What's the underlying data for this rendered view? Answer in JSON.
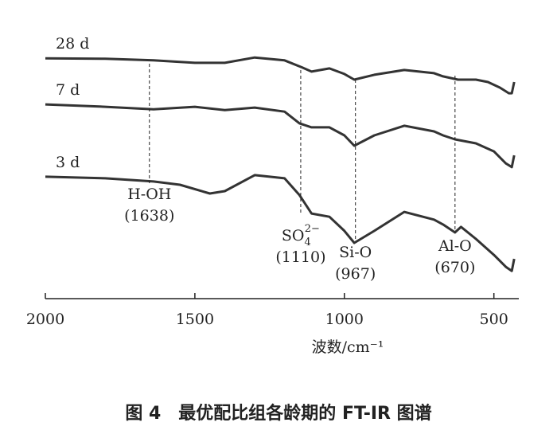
{
  "chart_data": {
    "type": "line",
    "x_label": "波数/cm⁻¹",
    "caption": "图 4　最优配比组各龄期的 FT-IR 图谱",
    "xlim": [
      2000,
      430
    ],
    "xticks": [
      2000,
      1500,
      1000,
      500
    ],
    "ylim": [
      0,
      100
    ],
    "series": [
      {
        "name": "28 d",
        "color": "#333333",
        "x": [
          2000,
          1800,
          1638,
          1500,
          1400,
          1300,
          1200,
          1140,
          1110,
          1050,
          1000,
          967,
          900,
          800,
          700,
          670,
          620,
          560,
          520,
          480,
          450,
          440,
          432
        ],
        "values": [
          90.1,
          89.9,
          89.3,
          88.4,
          88.4,
          90.4,
          89.3,
          86.6,
          85.1,
          86.3,
          84.2,
          82.1,
          83.9,
          85.7,
          84.5,
          83.3,
          82.1,
          82.1,
          81.2,
          79.1,
          77.0,
          77.0,
          81.2
        ]
      },
      {
        "name": "7 d",
        "color": "#333333",
        "x": [
          2000,
          1800,
          1638,
          1500,
          1400,
          1300,
          1200,
          1150,
          1110,
          1050,
          1000,
          967,
          900,
          800,
          700,
          670,
          630,
          560,
          500,
          460,
          440,
          432
        ],
        "values": [
          72.8,
          71.9,
          71.0,
          71.9,
          70.7,
          71.6,
          70.1,
          65.7,
          64.2,
          64.2,
          61.2,
          57.3,
          61.2,
          64.8,
          62.7,
          61.2,
          59.7,
          58.2,
          55.2,
          50.7,
          49.3,
          53.7
        ]
      },
      {
        "name": "3 d",
        "color": "#333333",
        "x": [
          2000,
          1800,
          1638,
          1550,
          1450,
          1400,
          1300,
          1200,
          1150,
          1110,
          1050,
          1000,
          967,
          900,
          800,
          700,
          670,
          630,
          610,
          560,
          500,
          460,
          440,
          432
        ],
        "values": [
          45.7,
          45.1,
          43.9,
          42.7,
          39.4,
          40.3,
          46.3,
          45.1,
          38.8,
          31.9,
          30.7,
          25.4,
          20.9,
          25.4,
          32.5,
          29.6,
          27.8,
          24.8,
          26.9,
          22.4,
          16.4,
          11.9,
          10.4,
          14.9
        ]
      }
    ],
    "annotations": [
      {
        "x": 1652,
        "text": "H-OH",
        "label": "(1638)"
      },
      {
        "x": 1146,
        "text": "SO",
        "sub": "4",
        "sup": "2−",
        "label": "(1110)"
      },
      {
        "x": 963,
        "text": "Si-O",
        "label": "(967)"
      },
      {
        "x": 630,
        "text": "Al-O",
        "label": "(670)"
      }
    ]
  }
}
